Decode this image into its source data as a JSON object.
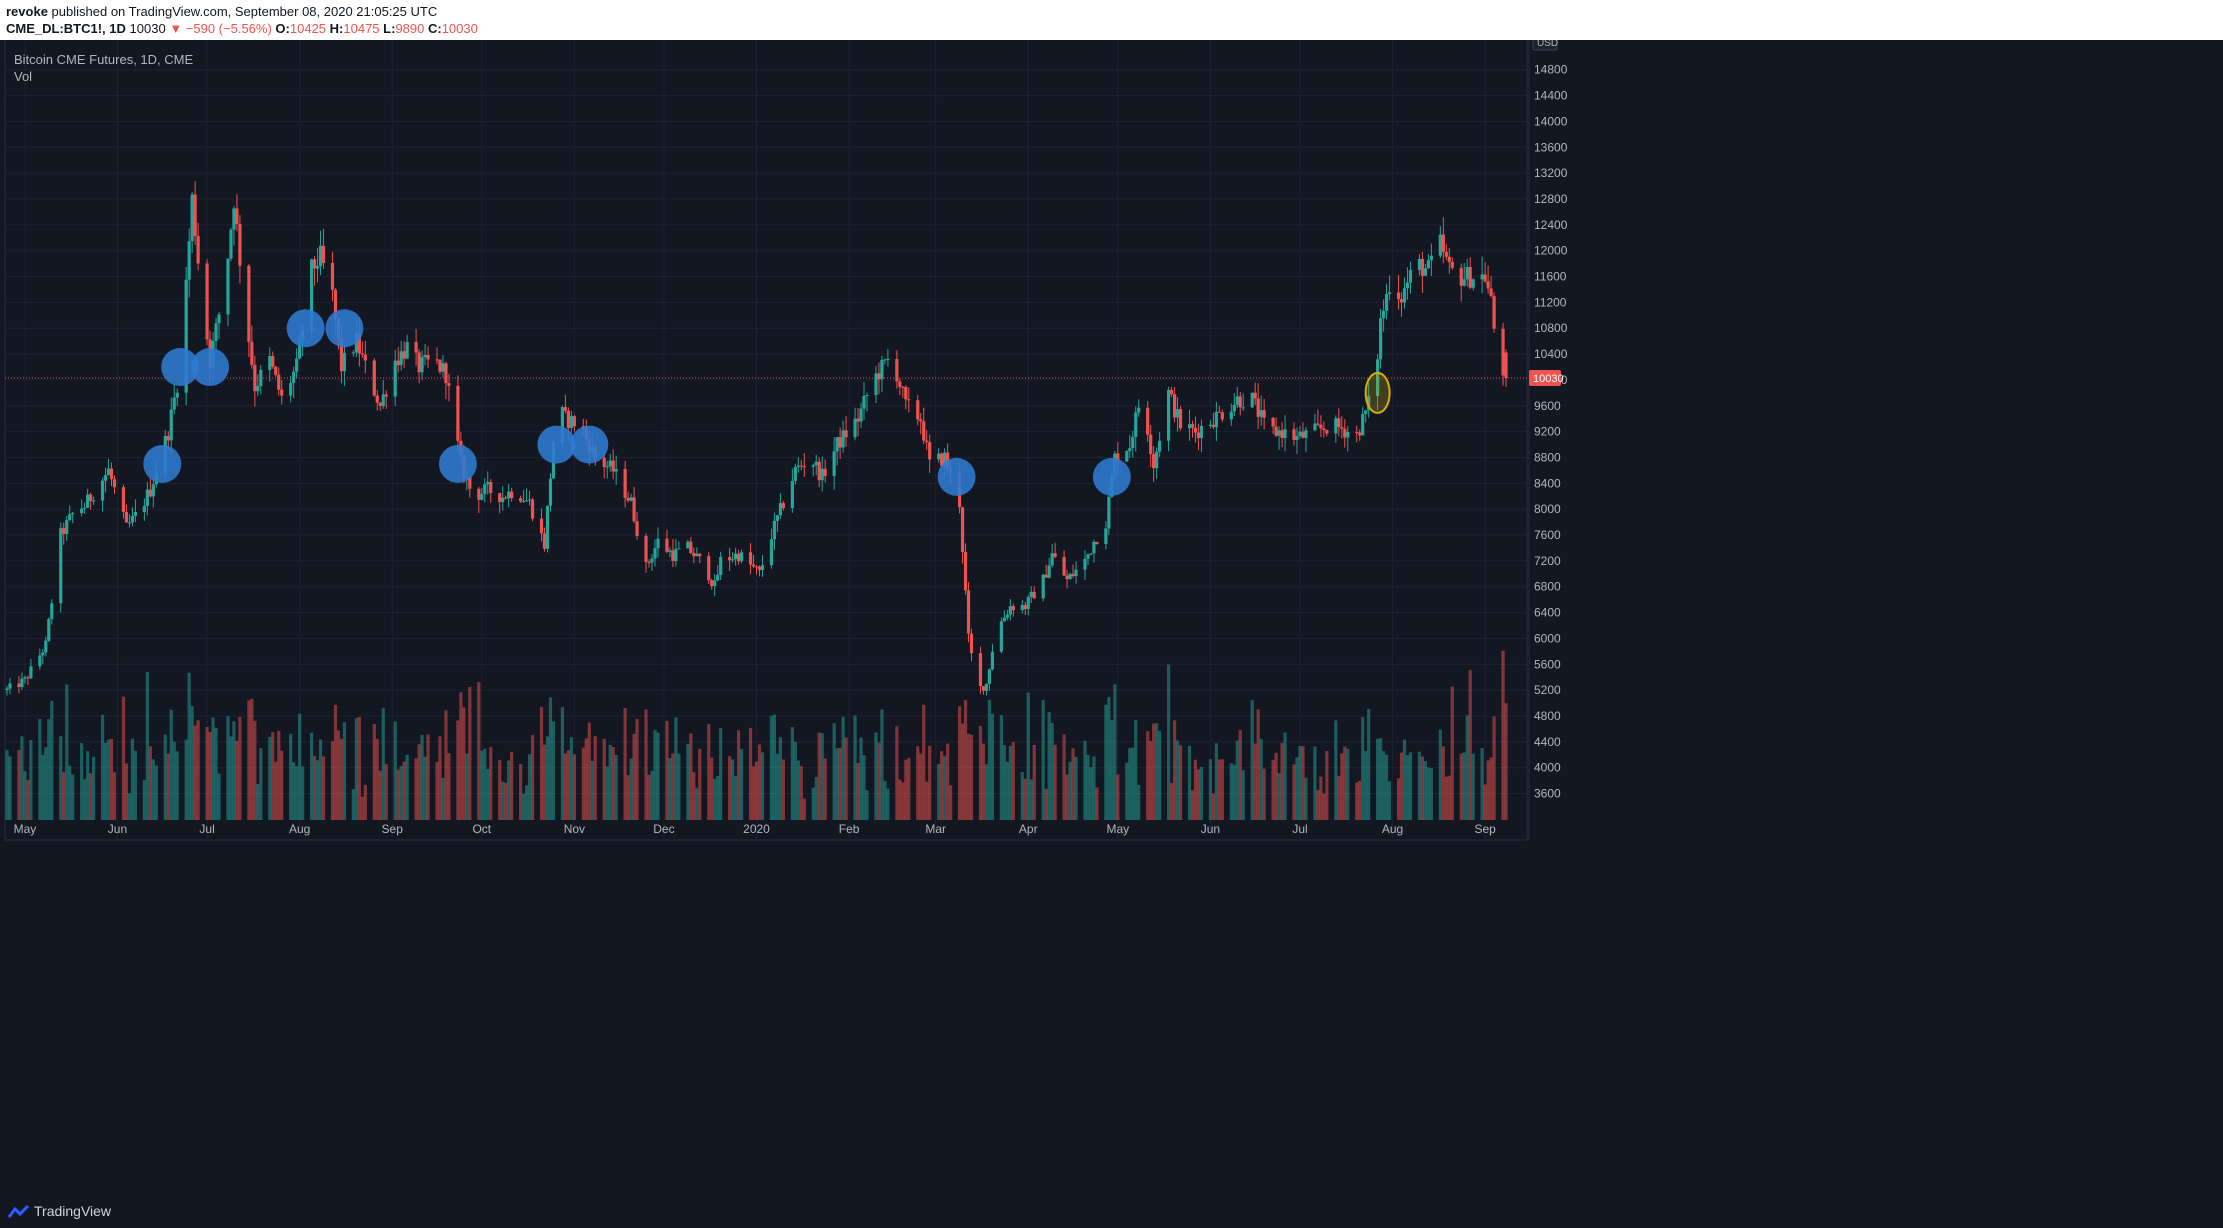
{
  "header": {
    "author": "revoke",
    "published_text": "published on TradingView.com, September 08, 2020 21:05:25 UTC",
    "symbol": "CME_DL:BTC1!, 1D",
    "last": "10030",
    "change": "▼ −590 (−5.56%)",
    "o_label": "O:",
    "o_value": "10425",
    "h_label": "H:",
    "h_value": "10475",
    "l_label": "L:",
    "l_value": "9890",
    "c_label": "C:",
    "c_value": "10030"
  },
  "legend": {
    "title": "Bitcoin CME Futures, 1D, CME",
    "volume_label": "Vol"
  },
  "currency_badge": "USD",
  "price_tag": "10030",
  "footer": {
    "brand": "TradingView"
  },
  "colors": {
    "background": "#131722",
    "up": "#26a69a",
    "down": "#ef5350",
    "grid": "#1e2230",
    "marker": "#2e7bd1",
    "marker_highlight": "#d4b106"
  },
  "chart_data": {
    "type": "candlestick",
    "title": "Bitcoin CME Futures, 1D, CME",
    "ylim": [
      3200,
      15000
    ],
    "y_ticks": [
      3600,
      4000,
      4400,
      4800,
      5200,
      5600,
      6000,
      6400,
      6800,
      7200,
      7600,
      8000,
      8400,
      8800,
      9200,
      9600,
      10000,
      10400,
      10800,
      11200,
      11600,
      12000,
      12400,
      12800,
      13200,
      13600,
      14000,
      14400,
      14800
    ],
    "x_labels": [
      "May",
      "Jun",
      "Jul",
      "Aug",
      "Sep",
      "Oct",
      "Nov",
      "Dec",
      "2020",
      "Feb",
      "Mar",
      "Apr",
      "May",
      "Jun",
      "Jul",
      "Aug",
      "Sep"
    ],
    "x_label_dates": [
      "2019-05-01",
      "2019-06-01",
      "2019-07-01",
      "2019-08-01",
      "2019-09-01",
      "2019-10-01",
      "2019-11-01",
      "2019-12-01",
      "2020-01-01",
      "2020-02-01",
      "2020-03-01",
      "2020-04-01",
      "2020-05-01",
      "2020-06-01",
      "2020-07-01",
      "2020-08-01",
      "2020-09-01"
    ],
    "x_range": [
      "2019-04-25",
      "2020-09-10"
    ],
    "last_price_line": 10030,
    "close_path": [
      [
        "2019-04-25",
        5200
      ],
      [
        "2019-05-01",
        5350
      ],
      [
        "2019-05-08",
        5900
      ],
      [
        "2019-05-13",
        7600
      ],
      [
        "2019-05-18",
        8000
      ],
      [
        "2019-05-21",
        8050
      ],
      [
        "2019-05-29",
        8600
      ],
      [
        "2019-06-04",
        7700
      ],
      [
        "2019-06-08",
        7950
      ],
      [
        "2019-06-12",
        8300
      ],
      [
        "2019-06-18",
        9200
      ],
      [
        "2019-06-22",
        10200
      ],
      [
        "2019-06-26",
        12800
      ],
      [
        "2019-06-29",
        11400
      ],
      [
        "2019-07-02",
        10300
      ],
      [
        "2019-07-07",
        11500
      ],
      [
        "2019-07-10",
        12800
      ],
      [
        "2019-07-13",
        11400
      ],
      [
        "2019-07-17",
        9900
      ],
      [
        "2019-07-22",
        10300
      ],
      [
        "2019-07-26",
        9700
      ],
      [
        "2019-07-31",
        10200
      ],
      [
        "2019-08-05",
        11700
      ],
      [
        "2019-08-08",
        11900
      ],
      [
        "2019-08-12",
        11300
      ],
      [
        "2019-08-15",
        10200
      ],
      [
        "2019-08-20",
        10600
      ],
      [
        "2019-08-23",
        10200
      ],
      [
        "2019-08-28",
        9600
      ],
      [
        "2019-09-02",
        10300
      ],
      [
        "2019-09-06",
        10500
      ],
      [
        "2019-09-10",
        10200
      ],
      [
        "2019-09-15",
        10300
      ],
      [
        "2019-09-19",
        10100
      ],
      [
        "2019-09-24",
        8700
      ],
      [
        "2019-09-28",
        8200
      ],
      [
        "2019-10-03",
        8300
      ],
      [
        "2019-10-08",
        8200
      ],
      [
        "2019-10-12",
        8300
      ],
      [
        "2019-10-17",
        8100
      ],
      [
        "2019-10-22",
        7450
      ],
      [
        "2019-10-26",
        9600
      ],
      [
        "2019-10-29",
        9400
      ],
      [
        "2019-11-03",
        9300
      ],
      [
        "2019-11-08",
        8800
      ],
      [
        "2019-11-14",
        8600
      ],
      [
        "2019-11-20",
        8100
      ],
      [
        "2019-11-25",
        7100
      ],
      [
        "2019-11-29",
        7500
      ],
      [
        "2019-12-04",
        7300
      ],
      [
        "2019-12-09",
        7400
      ],
      [
        "2019-12-15",
        7100
      ],
      [
        "2019-12-18",
        6800
      ],
      [
        "2019-12-20",
        7200
      ],
      [
        "2019-12-26",
        7300
      ],
      [
        "2020-01-02",
        7000
      ],
      [
        "2020-01-06",
        7600
      ],
      [
        "2020-01-10",
        8100
      ],
      [
        "2020-01-14",
        8600
      ],
      [
        "2020-01-19",
        8800
      ],
      [
        "2020-01-23",
        8500
      ],
      [
        "2020-01-28",
        9000
      ],
      [
        "2020-02-04",
        9400
      ],
      [
        "2020-02-09",
        10000
      ],
      [
        "2020-02-14",
        10300
      ],
      [
        "2020-02-17",
        10100
      ],
      [
        "2020-02-20",
        9600
      ],
      [
        "2020-02-25",
        9400
      ],
      [
        "2020-02-28",
        8700
      ],
      [
        "2020-03-04",
        8800
      ],
      [
        "2020-03-09",
        8100
      ],
      [
        "2020-03-12",
        6000
      ],
      [
        "2020-03-15",
        5200
      ],
      [
        "2020-03-18",
        5300
      ],
      [
        "2020-03-21",
        6100
      ],
      [
        "2020-03-26",
        6500
      ],
      [
        "2020-03-31",
        6500
      ],
      [
        "2020-04-06",
        6900
      ],
      [
        "2020-04-09",
        7300
      ],
      [
        "2020-04-14",
        6900
      ],
      [
        "2020-04-20",
        7200
      ],
      [
        "2020-04-23",
        7500
      ],
      [
        "2020-04-27",
        7800
      ],
      [
        "2020-04-30",
        8800
      ],
      [
        "2020-05-05",
        9000
      ],
      [
        "2020-05-09",
        9800
      ],
      [
        "2020-05-13",
        8700
      ],
      [
        "2020-05-18",
        9800
      ],
      [
        "2020-05-22",
        9300
      ],
      [
        "2020-05-27",
        9200
      ],
      [
        "2020-06-02",
        9400
      ],
      [
        "2020-06-05",
        9500
      ],
      [
        "2020-06-10",
        9700
      ],
      [
        "2020-06-15",
        9700
      ],
      [
        "2020-06-20",
        9200
      ],
      [
        "2020-06-25",
        9200
      ],
      [
        "2020-06-30",
        9100
      ],
      [
        "2020-07-06",
        9200
      ],
      [
        "2020-07-11",
        9300
      ],
      [
        "2020-07-15",
        9250
      ],
      [
        "2020-07-20",
        9150
      ],
      [
        "2020-07-23",
        9500
      ],
      [
        "2020-07-26",
        9900
      ],
      [
        "2020-07-28",
        10900
      ],
      [
        "2020-07-31",
        11500
      ],
      [
        "2020-08-04",
        11300
      ],
      [
        "2020-08-09",
        11800
      ],
      [
        "2020-08-13",
        11700
      ],
      [
        "2020-08-17",
        12100
      ],
      [
        "2020-08-20",
        11700
      ],
      [
        "2020-08-24",
        11600
      ],
      [
        "2020-08-28",
        11600
      ],
      [
        "2020-09-01",
        11600
      ],
      [
        "2020-09-03",
        11200
      ],
      [
        "2020-09-05",
        10400
      ],
      [
        "2020-09-08",
        10030
      ]
    ],
    "annotations": [
      {
        "date": "2019-06-16",
        "price": 8700,
        "color": "blue"
      },
      {
        "date": "2019-06-22",
        "price": 10200,
        "color": "blue"
      },
      {
        "date": "2019-07-02",
        "price": 10200,
        "color": "blue"
      },
      {
        "date": "2019-08-03",
        "price": 10800,
        "color": "blue"
      },
      {
        "date": "2019-08-16",
        "price": 10800,
        "color": "blue"
      },
      {
        "date": "2019-09-23",
        "price": 8700,
        "color": "blue"
      },
      {
        "date": "2019-10-26",
        "price": 9000,
        "color": "blue"
      },
      {
        "date": "2019-11-06",
        "price": 9000,
        "color": "blue"
      },
      {
        "date": "2020-03-08",
        "price": 8500,
        "color": "blue"
      },
      {
        "date": "2020-04-29",
        "price": 8500,
        "color": "blue"
      },
      {
        "date": "2020-07-27",
        "price": 9800,
        "color": "yellow"
      }
    ]
  }
}
